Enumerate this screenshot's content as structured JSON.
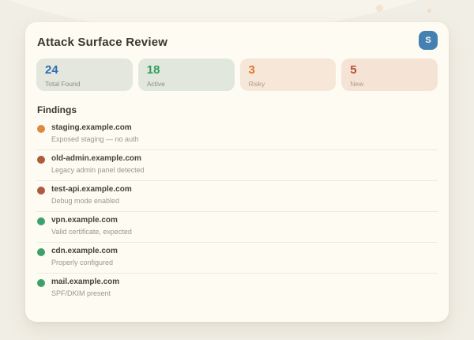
{
  "header": {
    "title": "Attack Surface Review",
    "avatar_initial": "S",
    "avatar_color": "#4480b2"
  },
  "stats": [
    {
      "value": "24",
      "label": "Total Found",
      "value_color": "#2d6cb6",
      "label_color": "#8b8d85",
      "bg": "#e4e7de"
    },
    {
      "value": "18",
      "label": "Active",
      "value_color": "#2d9e5e",
      "label_color": "#8b8d85",
      "bg": "#e2e7dd"
    },
    {
      "value": "3",
      "label": "Risky",
      "value_color": "#e0762a",
      "label_color": "#b29987",
      "bg": "#f6e7d8"
    },
    {
      "value": "5",
      "label": "New",
      "value_color": "#b44f31",
      "label_color": "#b29987",
      "bg": "#f5e4d5"
    }
  ],
  "findings": {
    "heading": "Findings",
    "items": [
      {
        "domain": "staging.example.com",
        "note": "Exposed staging — no auth",
        "dot_color": "#dd8a3e"
      },
      {
        "domain": "old-admin.example.com",
        "note": "Legacy admin panel detected",
        "dot_color": "#ae5a3d"
      },
      {
        "domain": "test-api.example.com",
        "note": "Debug mode enabled",
        "dot_color": "#ae5a3d"
      },
      {
        "domain": "vpn.example.com",
        "note": "Valid certificate, expected",
        "dot_color": "#3ea06c"
      },
      {
        "domain": "cdn.example.com",
        "note": "Properly configured",
        "dot_color": "#3ea06c"
      },
      {
        "domain": "mail.example.com",
        "note": "SPF/DKIM present",
        "dot_color": "#3ea06c"
      }
    ]
  }
}
